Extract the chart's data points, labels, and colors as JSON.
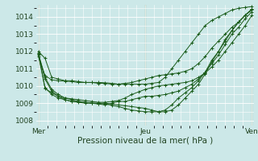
{
  "xlabel": "Pression niveau de la mer( hPa )",
  "bg_color": "#cce8e8",
  "grid_color": "#ffffff",
  "line_color": "#1a5c1a",
  "xtick_labels": [
    "Mer",
    "Jeu",
    "Ven"
  ],
  "xtick_positions": [
    0,
    24,
    48
  ],
  "ylim": [
    1007.7,
    1014.7
  ],
  "xlim": [
    -0.5,
    48.5
  ],
  "yticks": [
    1008,
    1009,
    1010,
    1011,
    1012,
    1013,
    1014
  ],
  "lines": [
    [
      1012.0,
      1011.6,
      1010.5,
      1010.4,
      1010.3,
      1010.3,
      1010.25,
      1010.2,
      1010.2,
      1010.15,
      1010.15,
      1010.1,
      1010.1,
      1010.1,
      1010.1,
      1010.1,
      1010.1,
      1010.15,
      1010.2,
      1010.5,
      1011.0,
      1011.5,
      1012.0,
      1012.5,
      1013.0,
      1013.5,
      1013.8,
      1014.0,
      1014.2,
      1014.4,
      1014.5,
      1014.55,
      1014.6
    ],
    [
      1011.9,
      1010.5,
      1009.8,
      1009.5,
      1009.3,
      1009.2,
      1009.1,
      1009.05,
      1009.0,
      1009.0,
      1009.0,
      1008.95,
      1008.9,
      1008.85,
      1008.8,
      1008.75,
      1008.7,
      1008.6,
      1008.5,
      1008.5,
      1008.6,
      1008.9,
      1009.3,
      1009.7,
      1010.1,
      1010.7,
      1011.4,
      1012.0,
      1012.6,
      1013.2,
      1013.7,
      1014.1,
      1014.4
    ],
    [
      1011.8,
      1009.9,
      1009.5,
      1009.3,
      1009.2,
      1009.1,
      1009.05,
      1009.0,
      1009.0,
      1008.95,
      1008.9,
      1009.0,
      1009.1,
      1009.1,
      1009.2,
      1009.3,
      1009.4,
      1009.4,
      1009.45,
      1009.5,
      1009.6,
      1009.7,
      1009.9,
      1010.1,
      1010.4,
      1010.8,
      1011.3,
      1011.8,
      1012.4,
      1013.0,
      1013.4,
      1013.9,
      1014.3
    ],
    [
      1011.85,
      1010.4,
      1009.7,
      1009.4,
      1009.2,
      1009.1,
      1009.1,
      1009.05,
      1009.0,
      1008.98,
      1008.95,
      1008.88,
      1008.8,
      1008.7,
      1008.6,
      1008.55,
      1008.5,
      1008.5,
      1008.5,
      1008.6,
      1008.9,
      1009.3,
      1009.6,
      1009.9,
      1010.3,
      1010.8,
      1011.5,
      1012.0,
      1012.7,
      1013.2,
      1013.7,
      1014.1,
      1014.45
    ],
    [
      1011.7,
      1010.6,
      1010.35,
      1010.3,
      1010.28,
      1010.25,
      1010.2,
      1010.2,
      1010.2,
      1010.2,
      1010.18,
      1010.15,
      1010.1,
      1010.15,
      1010.2,
      1010.3,
      1010.4,
      1010.5,
      1010.6,
      1010.65,
      1010.7,
      1010.75,
      1010.85,
      1011.0,
      1011.3,
      1011.7,
      1012.2,
      1012.6,
      1013.0,
      1013.4,
      1013.7,
      1014.1,
      1014.45
    ],
    [
      1011.9,
      1009.85,
      1009.6,
      1009.4,
      1009.3,
      1009.25,
      1009.2,
      1009.15,
      1009.1,
      1009.05,
      1009.05,
      1009.1,
      1009.15,
      1009.3,
      1009.5,
      1009.65,
      1009.8,
      1009.9,
      1010.0,
      1010.05,
      1010.1,
      1010.15,
      1010.2,
      1010.3,
      1010.5,
      1010.75,
      1011.1,
      1011.5,
      1012.0,
      1012.5,
      1013.0,
      1013.5,
      1014.1
    ]
  ],
  "vline_positions": [
    0,
    24,
    48
  ],
  "vline_color": "#4a7a4a",
  "border_color": "#3a6a3a"
}
